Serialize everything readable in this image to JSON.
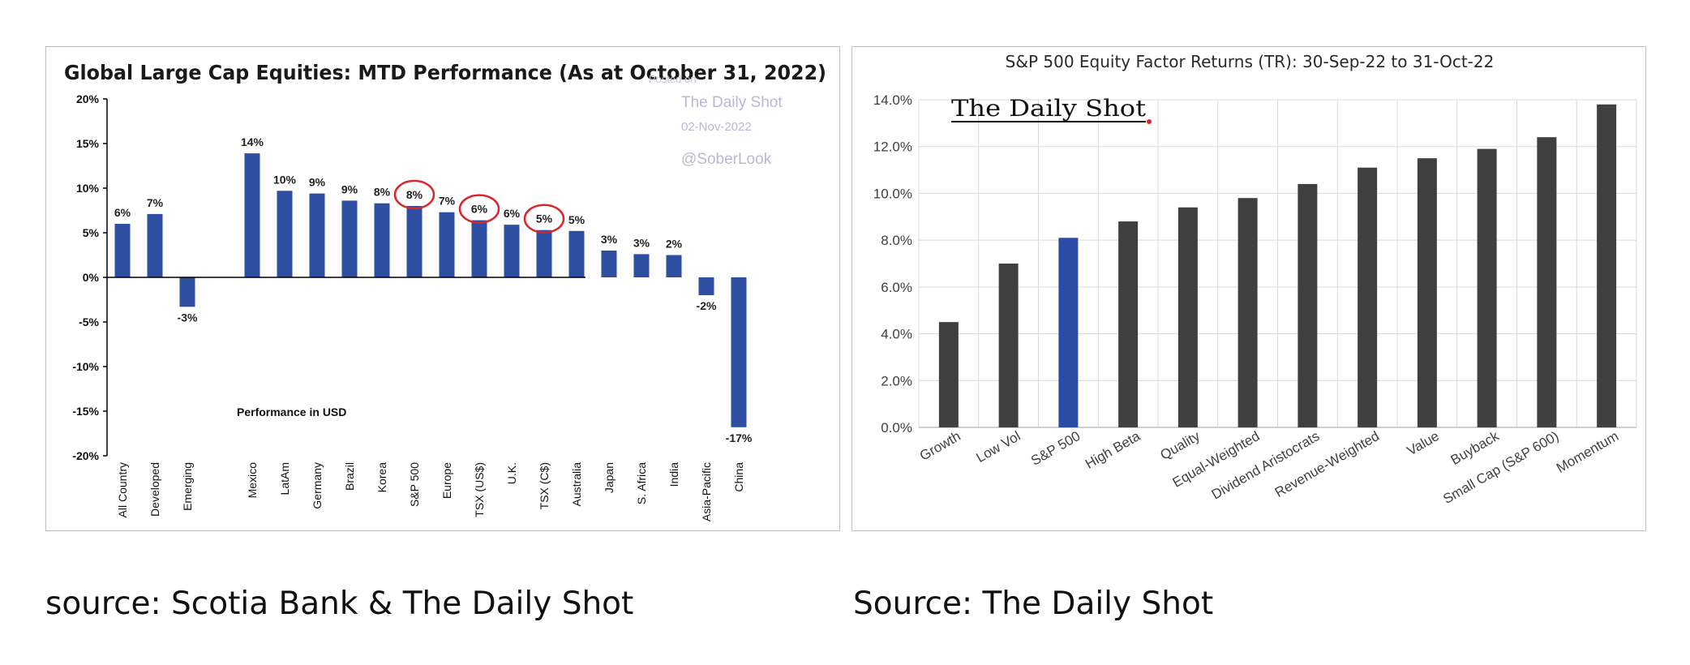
{
  "captions": {
    "left": "source: Scotia Bank & The Daily Shot",
    "right": "Source: The Daily Shot"
  },
  "chart_data": [
    {
      "type": "bar",
      "title": "Global Large Cap Equities: MTD Performance (As at October 31, 2022)",
      "annotation": "Performance in USD",
      "watermark": [
        "Posted on",
        "The Daily Shot",
        "02-Nov-2022",
        "@SoberLook"
      ],
      "yticks": [
        "20%",
        "15%",
        "10%",
        "5%",
        "0%",
        "-5%",
        "-10%",
        "-15%",
        "-20%"
      ],
      "ylim": [
        -20,
        20
      ],
      "bar_color": "#2e4ea2",
      "highlight_color": "#d9262c",
      "highlighted": [
        "S&P 500",
        "TSX (US$)",
        "TSX (C$)"
      ],
      "categories": [
        "All Country",
        "Developed",
        "Emerging",
        "Mexico",
        "LatAm",
        "Germany",
        "Brazil",
        "Korea",
        "S&P 500",
        "Europe",
        "TSX (US$)",
        "U.K.",
        "TSX (C$)",
        "Australia",
        "Japan",
        "S. Africa",
        "India",
        "Asia-Pacific",
        "China"
      ],
      "values": [
        6.0,
        7.1,
        -3.3,
        13.9,
        9.7,
        9.4,
        8.6,
        8.3,
        8.0,
        7.3,
        6.4,
        5.9,
        5.3,
        5.2,
        3.0,
        2.6,
        2.5,
        -2.0,
        -16.8
      ],
      "data_labels": [
        "6%",
        "7%",
        "-3%",
        "14%",
        "10%",
        "9%",
        "9%",
        "8%",
        "8%",
        "7%",
        "6%",
        "6%",
        "5%",
        "5%",
        "3%",
        "3%",
        "2%",
        "-2%",
        "-17%"
      ]
    },
    {
      "type": "bar",
      "title": "S&P 500 Equity Factor Returns (TR): 30-Sep-22 to 31-Oct-22",
      "logo": "The Daily Shot",
      "yticks": [
        "14.0%",
        "12.0%",
        "10.0%",
        "8.0%",
        "6.0%",
        "4.0%",
        "2.0%",
        "0.0%"
      ],
      "ylim": [
        0,
        14
      ],
      "grid": true,
      "bar_color": "#404040",
      "highlight_color": "#2a4ca6",
      "highlighted": [
        "S&P 500"
      ],
      "categories": [
        "Growth",
        "Low Vol",
        "S&P 500",
        "High Beta",
        "Quality",
        "Equal-Weighted",
        "Dividend Aristocrats",
        "Revenue-Weighted",
        "Value",
        "Buyback",
        "Small Cap (S&P 600)",
        "Momentum"
      ],
      "values": [
        4.5,
        7.0,
        8.1,
        8.8,
        9.4,
        9.8,
        10.4,
        11.1,
        11.5,
        11.9,
        12.4,
        13.8
      ]
    }
  ]
}
